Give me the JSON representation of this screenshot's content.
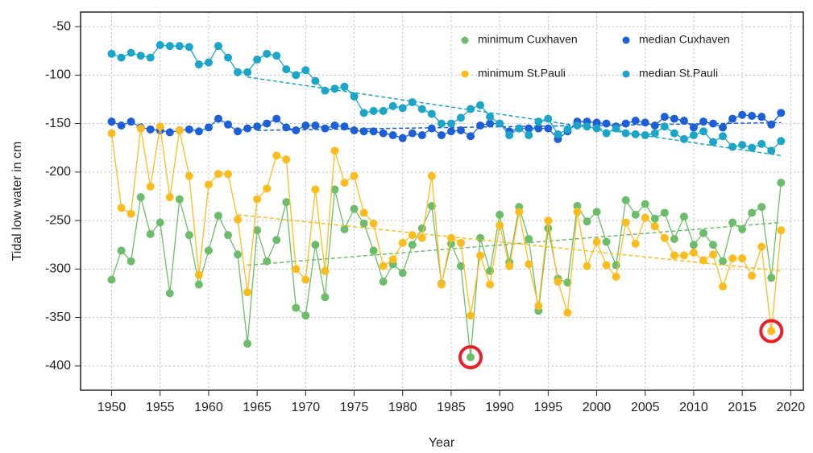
{
  "chart_data": {
    "type": "line",
    "x_label": "Year",
    "y_label": "Tidal low water in cm",
    "x": [
      1950,
      1951,
      1952,
      1953,
      1954,
      1955,
      1956,
      1957,
      1958,
      1959,
      1960,
      1961,
      1962,
      1963,
      1964,
      1965,
      1966,
      1967,
      1968,
      1969,
      1970,
      1971,
      1972,
      1973,
      1974,
      1975,
      1976,
      1977,
      1978,
      1979,
      1980,
      1981,
      1982,
      1983,
      1984,
      1985,
      1986,
      1987,
      1988,
      1989,
      1990,
      1991,
      1992,
      1993,
      1994,
      1995,
      1996,
      1997,
      1998,
      1999,
      2000,
      2001,
      2002,
      2003,
      2004,
      2005,
      2006,
      2007,
      2008,
      2009,
      2010,
      2011,
      2012,
      2013,
      2014,
      2015,
      2016,
      2017,
      2018,
      2019
    ],
    "series": [
      {
        "name": "minimum Cuxhaven",
        "color": "#6cbd6a",
        "values": [
          -311,
          -281,
          -292,
          -226,
          -264,
          -252,
          -325,
          -228,
          -265,
          -316,
          -281,
          -245,
          -265,
          -285,
          -377,
          -260,
          -292,
          -270,
          -231,
          -340,
          -348,
          -275,
          -329,
          -218,
          -259,
          -238,
          -253,
          -281,
          -313,
          -295,
          -304,
          -275,
          -258,
          -235,
          -315,
          -274,
          -297,
          -391,
          -268,
          -302,
          -244,
          -293,
          -236,
          -269,
          -343,
          -258,
          -310,
          -314,
          -235,
          -251,
          -241,
          -272,
          -296,
          -229,
          -244,
          -233,
          -248,
          -242,
          -269,
          -246,
          -275,
          -263,
          -275,
          -292,
          -252,
          -259,
          -242,
          -236,
          -309,
          -211
        ],
        "trend": {
          "x": [
            1964,
            2019
          ],
          "values": [
            -296,
            -252
          ]
        }
      },
      {
        "name": "median Cuxhaven",
        "color": "#1c5fd8",
        "values": [
          -148,
          -152,
          -148,
          -154,
          -156,
          -157,
          -159,
          -157,
          -156,
          -158,
          -154,
          -145,
          -151,
          -158,
          -155,
          -153,
          -150,
          -145,
          -154,
          -157,
          -152,
          -152,
          -155,
          -152,
          -153,
          -157,
          -158,
          -158,
          -160,
          -162,
          -165,
          -160,
          -162,
          -155,
          -162,
          -158,
          -157,
          -163,
          -152,
          -150,
          -150,
          -158,
          -155,
          -155,
          -155,
          -155,
          -166,
          -158,
          -148,
          -148,
          -149,
          -150,
          -153,
          -150,
          -147,
          -149,
          -152,
          -143,
          -145,
          -147,
          -154,
          -148,
          -150,
          -154,
          -145,
          -141,
          -142,
          -143,
          -151,
          -139
        ],
        "trend": {
          "x": [
            1965,
            2019
          ],
          "values": [
            -157,
            -149
          ]
        }
      },
      {
        "name": "minimum St.Pauli",
        "color": "#fbbd1e",
        "values": [
          -160,
          -237,
          -243,
          -155,
          -215,
          -153,
          -226,
          -157,
          -204,
          -306,
          -213,
          -202,
          -202,
          -249,
          -324,
          -228,
          -217,
          -183,
          -187,
          -300,
          -311,
          -218,
          -302,
          -178,
          -211,
          -204,
          -242,
          -253,
          -297,
          -290,
          -273,
          -265,
          -268,
          -204,
          -316,
          -268,
          -273,
          -348,
          -286,
          -316,
          -255,
          -297,
          -241,
          -295,
          -338,
          -250,
          -313,
          -345,
          -241,
          -297,
          -272,
          -296,
          -308,
          -252,
          -274,
          -247,
          -256,
          -268,
          -286,
          -286,
          -283,
          -291,
          -285,
          -318,
          -289,
          -289,
          -307,
          -277,
          -364,
          -260
        ],
        "trend": {
          "x": [
            1963,
            2019
          ],
          "values": [
            -244,
            -302
          ]
        }
      },
      {
        "name": "median St.Pauli",
        "color": "#1ba5c8",
        "values": [
          -78,
          -82,
          -77,
          -80,
          -82,
          -69,
          -70,
          -70,
          -71,
          -89,
          -87,
          -70,
          -82,
          -97,
          -97,
          -84,
          -78,
          -80,
          -94,
          -100,
          -95,
          -106,
          -116,
          -114,
          -112,
          -122,
          -139,
          -137,
          -137,
          -132,
          -134,
          -128,
          -135,
          -140,
          -150,
          -150,
          -144,
          -135,
          -131,
          -143,
          -150,
          -162,
          -155,
          -162,
          -148,
          -145,
          -161,
          -156,
          -152,
          -153,
          -155,
          -160,
          -155,
          -160,
          -161,
          -162,
          -160,
          -153,
          -160,
          -166,
          -162,
          -158,
          -169,
          -163,
          -174,
          -172,
          -175,
          -171,
          -178,
          -168
        ],
        "trend": {
          "x": [
            1964,
            2019
          ],
          "values": [
            -102,
            -183
          ]
        }
      }
    ],
    "highlights": [
      {
        "x": 1987,
        "value": -391,
        "color": "#e8202a"
      },
      {
        "x": 2018,
        "value": -364,
        "color": "#e8202a"
      }
    ],
    "xlim": [
      1946.8,
      2021.3
    ],
    "ylim": [
      -425,
      -35
    ],
    "xticks": [
      1950,
      1955,
      1960,
      1965,
      1970,
      1975,
      1980,
      1985,
      1990,
      1995,
      2000,
      2005,
      2010,
      2015,
      2020
    ],
    "yticks": [
      -50,
      -100,
      -150,
      -200,
      -250,
      -300,
      -350,
      -400
    ],
    "grid": true,
    "legend": "top-right"
  }
}
